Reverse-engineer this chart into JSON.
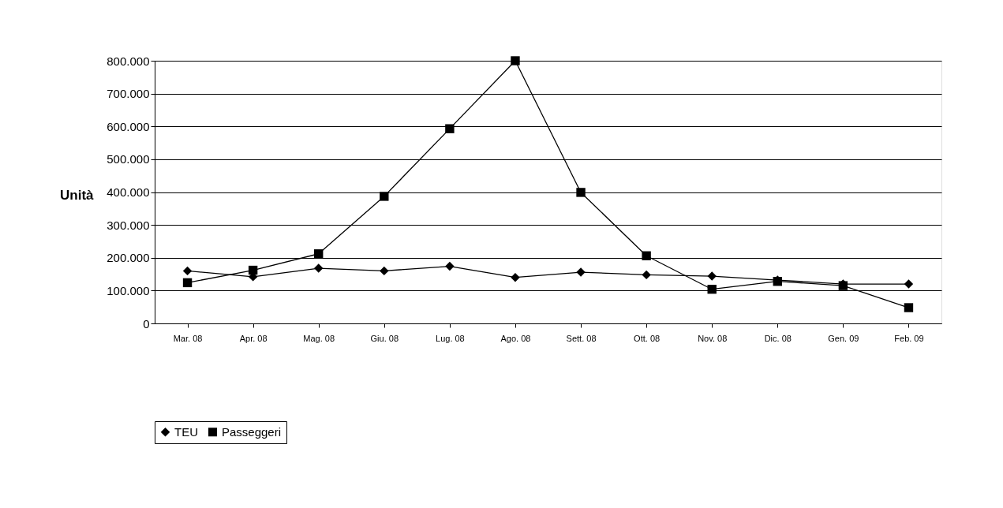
{
  "chart_data": {
    "type": "line",
    "ylabel": "Unità",
    "categories": [
      "Mar. 08",
      "Apr. 08",
      "Mag. 08",
      "Giu. 08",
      "Lug. 08",
      "Ago. 08",
      "Sett. 08",
      "Ott. 08",
      "Nov. 08",
      "Dic. 08",
      "Gen. 09",
      "Feb. 09"
    ],
    "series": [
      {
        "name": "TEU",
        "color": "#000000",
        "marker": "diamond",
        "values": [
          160000,
          142000,
          168000,
          160000,
          174000,
          140000,
          156000,
          148000,
          144000,
          132000,
          120000,
          120000
        ]
      },
      {
        "name": "Passeggeri",
        "color": "#000000",
        "marker": "square",
        "values": [
          124000,
          162000,
          212000,
          387000,
          593000,
          800000,
          399000,
          206000,
          104000,
          128000,
          115000,
          48000
        ]
      }
    ],
    "ylim": [
      0,
      800000
    ],
    "yticks": [
      {
        "value": 0,
        "label": "0"
      },
      {
        "value": 100000,
        "label": "100.000"
      },
      {
        "value": 200000,
        "label": "200.000"
      },
      {
        "value": 300000,
        "label": "300.000"
      },
      {
        "value": 400000,
        "label": "400.000"
      },
      {
        "value": 500000,
        "label": "500.000"
      },
      {
        "value": 600000,
        "label": "600.000"
      },
      {
        "value": 700000,
        "label": "700.000"
      },
      {
        "value": 800000,
        "label": "800.000"
      }
    ],
    "grid": "y",
    "legend": "bottom",
    "line_style": "solid"
  }
}
